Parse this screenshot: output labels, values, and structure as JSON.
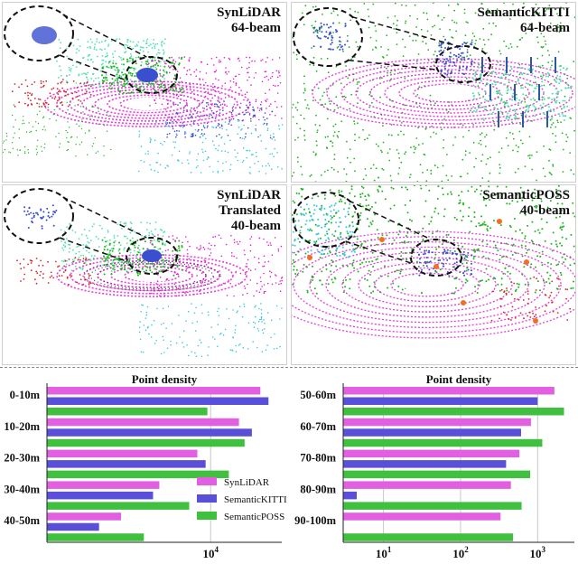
{
  "panels": [
    {
      "label_lines": [
        "SynLiDAR",
        "64-beam"
      ]
    },
    {
      "label_lines": [
        "SemanticKITTI",
        "64-beam"
      ]
    },
    {
      "label_lines": [
        "SynLiDAR",
        "Translated",
        "40-beam"
      ]
    },
    {
      "label_lines": [
        "SemanticPOSS",
        "40-beam"
      ]
    }
  ],
  "colors": {
    "SynLiDAR": "#e25fe2",
    "SemanticKITTI": "#5a4fd8",
    "SemanticPOSS": "#3fc03f",
    "magenta_points": "#e020d0",
    "green_points": "#22b422",
    "cyan_points": "#3ec8e0",
    "teal_points": "#55e0b0",
    "blue_points": "#3a4fd0"
  },
  "chart_data": [
    {
      "type": "bar",
      "orientation": "horizontal",
      "title": "Point density",
      "xscale": "log",
      "categories": [
        "0-10m",
        "10-20m",
        "20-30m",
        "30-40m",
        "40-50m"
      ],
      "series": [
        {
          "name": "SynLiDAR",
          "values": [
            50000,
            25000,
            6500,
            1900,
            550
          ]
        },
        {
          "name": "SemanticKITTI",
          "values": [
            65000,
            38000,
            8500,
            1550,
            270
          ]
        },
        {
          "name": "SemanticPOSS",
          "values": [
            9000,
            30000,
            18000,
            5000,
            1150
          ]
        }
      ],
      "xtick_labels": [
        "10^4"
      ],
      "xticks": [
        10000
      ],
      "xlim": [
        50,
        100000
      ],
      "legend": [
        "SynLiDAR",
        "SemanticKITTI",
        "SemanticPOSS"
      ],
      "legend_position": "bottom-right"
    },
    {
      "type": "bar",
      "orientation": "horizontal",
      "title": "Point density",
      "xscale": "log",
      "categories": [
        "50-60m",
        "60-70m",
        "70-80m",
        "80-90m",
        "90-100m"
      ],
      "series": [
        {
          "name": "SynLiDAR",
          "values": [
            1650,
            820,
            580,
            450,
            330
          ]
        },
        {
          "name": "SemanticKITTI",
          "values": [
            1000,
            610,
            390,
            4.5,
            0
          ]
        },
        {
          "name": "SemanticPOSS",
          "values": [
            2200,
            1150,
            800,
            620,
            480
          ]
        }
      ],
      "xtick_labels": [
        "10^1",
        "10^2",
        "10^3"
      ],
      "xticks": [
        10,
        100,
        1000
      ],
      "xlim": [
        3,
        3000
      ]
    }
  ]
}
